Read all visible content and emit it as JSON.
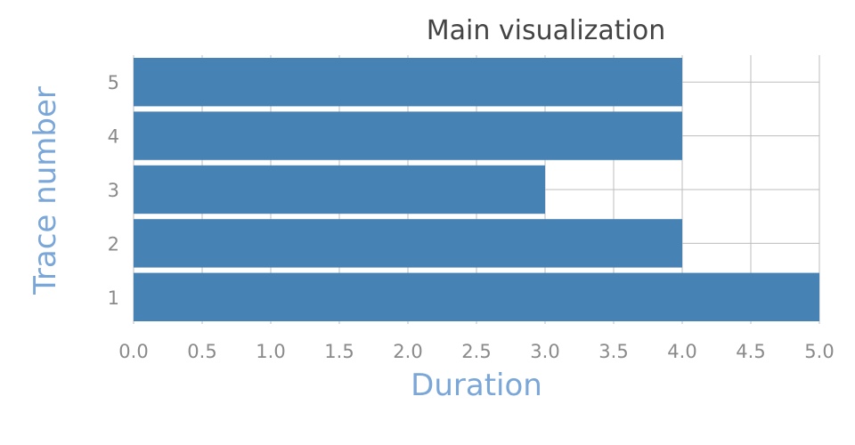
{
  "chart_data": {
    "type": "bar",
    "orientation": "horizontal",
    "title": "Main visualization",
    "xlabel": "Duration",
    "ylabel": "Trace number",
    "categories": [
      "1",
      "2",
      "3",
      "4",
      "5"
    ],
    "values": [
      5,
      4,
      3,
      4,
      4
    ],
    "xlim": [
      0,
      5
    ],
    "xticks": [
      "0.0",
      "0.5",
      "1.0",
      "1.5",
      "2.0",
      "2.5",
      "3.0",
      "3.5",
      "4.0",
      "4.5",
      "5.0"
    ],
    "grid": true,
    "legend": "none",
    "colors": {
      "bar": "#4682b4",
      "axis_title": "#7aa6d8",
      "grid": "#bdbdbd",
      "tick": "#8a8a8a",
      "title": "#444444"
    }
  }
}
